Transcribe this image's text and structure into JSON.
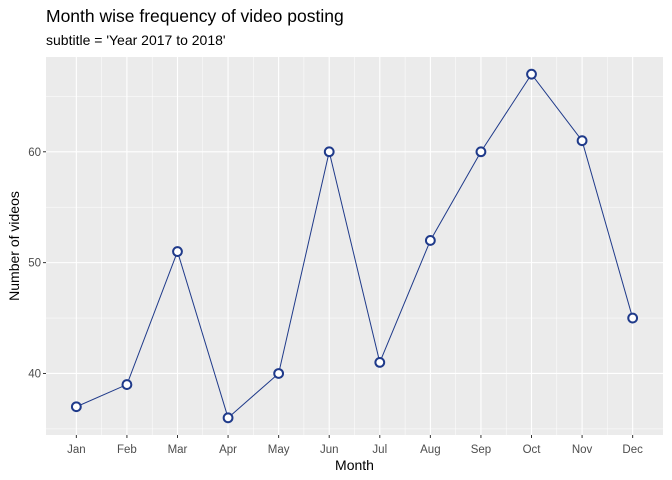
{
  "chart_data": {
    "type": "line",
    "title": "Month wise frequency of video posting",
    "subtitle": "subtitle = 'Year 2017 to 2018'",
    "xlabel": "Month",
    "ylabel": "Number of videos",
    "categories": [
      "Jan",
      "Feb",
      "Mar",
      "Apr",
      "May",
      "Jun",
      "Jul",
      "Aug",
      "Sep",
      "Oct",
      "Nov",
      "Dec"
    ],
    "values": [
      37,
      39,
      51,
      36,
      40,
      60,
      41,
      52,
      60,
      67,
      61,
      45
    ],
    "yticks": [
      "40",
      "50",
      "60"
    ],
    "ylim": [
      34.45,
      68.55
    ],
    "grid": true,
    "colors": {
      "line": "#1f3a8a",
      "point_fill": "#ffffff",
      "panel": "#ebebeb",
      "grid": "#ffffff"
    }
  }
}
